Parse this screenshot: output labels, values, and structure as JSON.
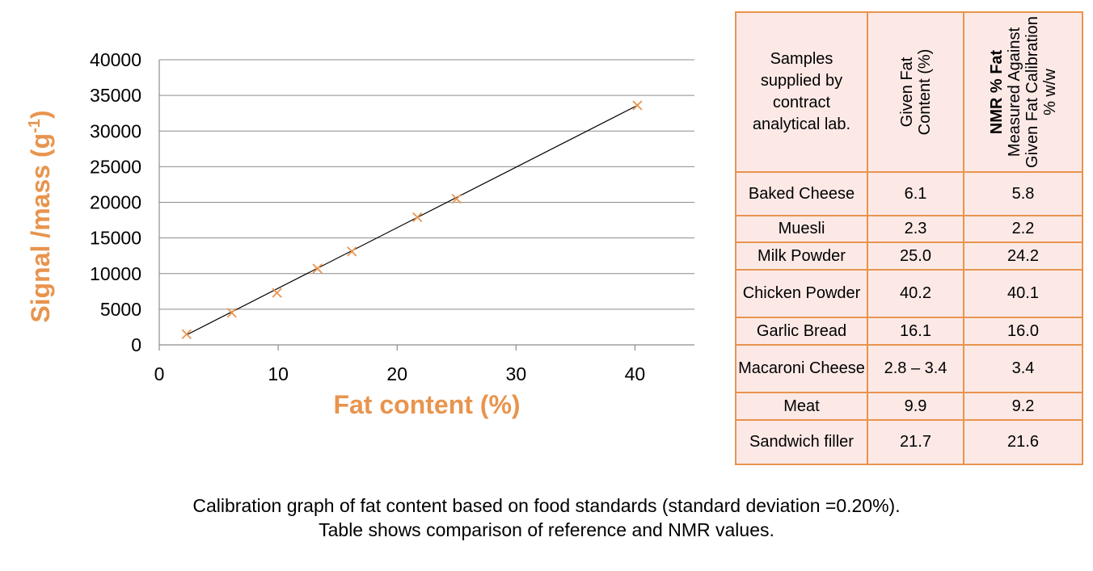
{
  "chart_data": {
    "type": "scatter",
    "xlabel": "Fat content (%)",
    "ylabel": "Signal /mass (g",
    "ylabel_sup": "-1",
    "ylabel_end": ")",
    "xlim": [
      0,
      45
    ],
    "ylim": [
      0,
      40000
    ],
    "x_ticks": [
      0,
      10,
      20,
      30,
      40
    ],
    "y_ticks": [
      0,
      5000,
      10000,
      15000,
      20000,
      25000,
      30000,
      35000,
      40000
    ],
    "grid": "horizontal",
    "marker": "x",
    "marker_color": "#e8944e",
    "trendline": {
      "from": [
        2.3,
        1400
      ],
      "to": [
        40.2,
        33600
      ]
    },
    "points": [
      {
        "x": 2.3,
        "y": 1500
      },
      {
        "x": 6.1,
        "y": 4500
      },
      {
        "x": 9.9,
        "y": 7300
      },
      {
        "x": 13.3,
        "y": 10700
      },
      {
        "x": 16.2,
        "y": 13100
      },
      {
        "x": 21.7,
        "y": 17900
      },
      {
        "x": 25.0,
        "y": 20500
      },
      {
        "x": 40.2,
        "y": 33600
      }
    ]
  },
  "table": {
    "headers": {
      "col1": "Samples supplied by contract analytical lab.",
      "col2": "Given Fat Content (%)",
      "col3_bold": "NMR % Fat",
      "col3_rest": "Measured Against Given Fat Calibration % w/w"
    },
    "rows": [
      [
        "Baked Cheese",
        "6.1",
        "5.8"
      ],
      [
        "Muesli",
        "2.3",
        "2.2"
      ],
      [
        "Milk Powder",
        "25.0",
        "24.2"
      ],
      [
        "Chicken Powder",
        "40.2",
        "40.1"
      ],
      [
        "Garlic Bread",
        "16.1",
        "16.0"
      ],
      [
        "Macaroni Cheese",
        "2.8 – 3.4",
        "3.4"
      ],
      [
        "Meat",
        "9.9",
        "9.2"
      ],
      [
        "Sandwich filler",
        "21.7",
        "21.6"
      ]
    ]
  },
  "caption": {
    "line1": "Calibration graph of fat content based on food standards (standard deviation =0.20%).",
    "line2": "Table shows comparison of reference and NMR values."
  },
  "colors": {
    "accent": "#e8944e",
    "table_bg": "#fce9e6",
    "grid": "#8c8c8c"
  }
}
